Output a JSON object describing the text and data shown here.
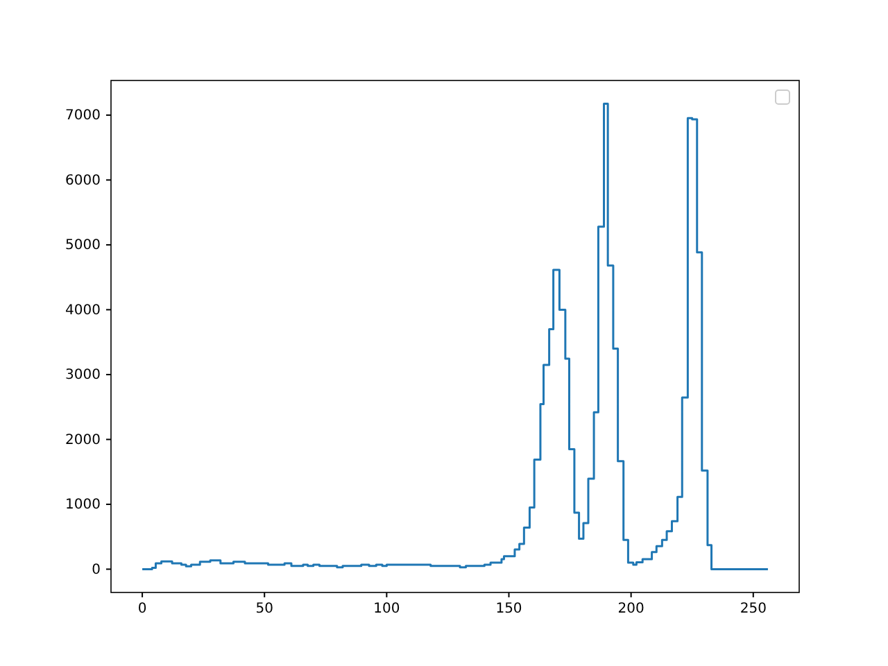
{
  "chart_data": {
    "type": "step",
    "xlim": [
      -12.8,
      268.8
    ],
    "ylim": [
      -359,
      7534
    ],
    "xticks": [
      0,
      50,
      100,
      150,
      200,
      250
    ],
    "yticks": [
      0,
      1000,
      2000,
      3000,
      4000,
      5000,
      6000,
      7000
    ],
    "grid": false,
    "series": [
      {
        "color": "#1f77b4",
        "x": [
          0,
          4,
          5.5,
          7.8,
          12.2,
          16,
          17.9,
          20,
          23.6,
          27.8,
          32,
          37.3,
          42,
          51.5,
          58.2,
          61,
          65.8,
          67.7,
          70,
          72.5,
          79.7,
          82,
          89.6,
          92.8,
          95.7,
          98.2,
          100,
          118,
          130,
          132.4,
          140,
          142.5,
          147,
          148,
          152.4,
          154.3,
          156.2,
          158.5,
          160.4,
          162.9,
          164.2,
          166.5,
          168.2,
          170.7,
          173.1,
          174.7,
          176.8,
          178.7,
          180.5,
          182.5,
          184.8,
          186.6,
          188.9,
          190.5,
          192.7,
          194.6,
          196.9,
          198.8,
          200.9,
          202.2,
          204.7,
          208.5,
          210.4,
          212.7,
          214.6,
          216.7,
          219,
          220.9,
          223.2,
          225,
          227,
          229,
          231.3,
          232.9,
          256
        ],
        "values": [
          0,
          20,
          90,
          120,
          90,
          70,
          45,
          70,
          115,
          135,
          90,
          115,
          90,
          70,
          90,
          50,
          70,
          50,
          70,
          50,
          30,
          50,
          70,
          50,
          70,
          50,
          70,
          50,
          30,
          50,
          70,
          100,
          155,
          200,
          305,
          390,
          640,
          950,
          1690,
          2545,
          3150,
          3700,
          4615,
          4000,
          3245,
          1850,
          870,
          470,
          710,
          1395,
          2420,
          5280,
          7175,
          4680,
          3400,
          1665,
          450,
          100,
          70,
          105,
          155,
          265,
          355,
          450,
          585,
          740,
          1115,
          2645,
          6955,
          6935,
          4885,
          1520,
          370,
          0,
          0
        ]
      }
    ]
  }
}
